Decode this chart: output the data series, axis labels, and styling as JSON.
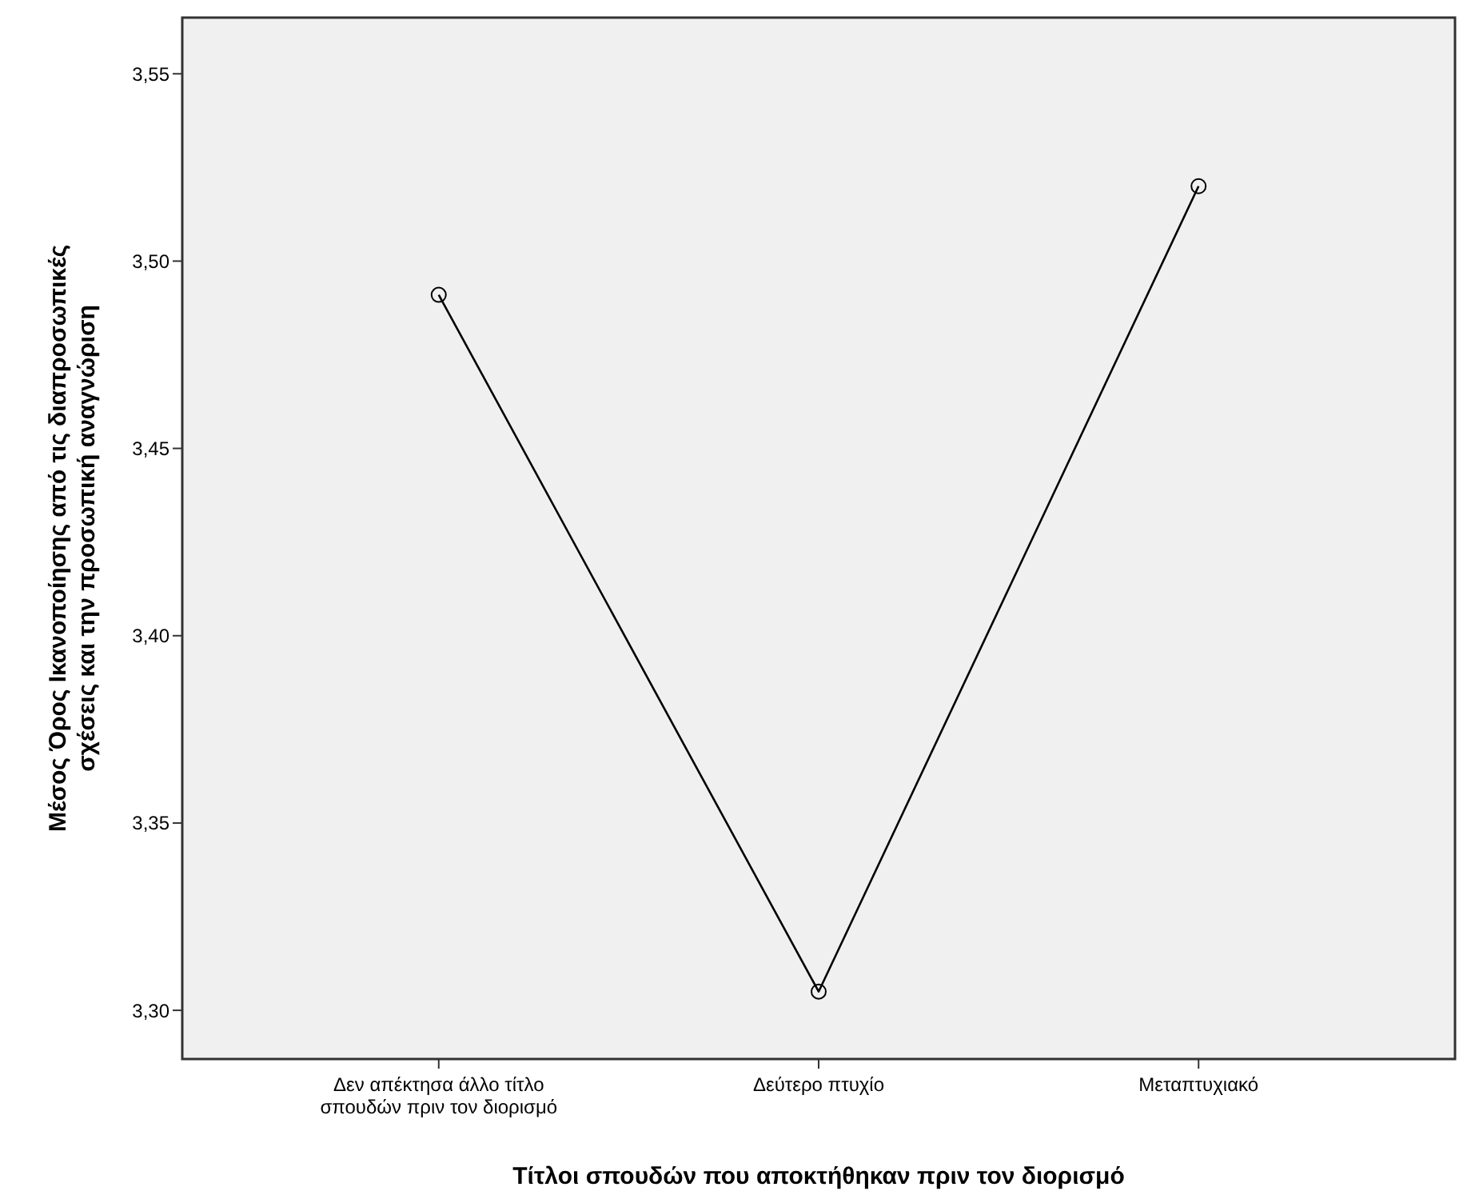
{
  "chart_data": {
    "type": "line",
    "xlabel": "Τίτλοι σπουδών που αποκτήθηκαν πριν τον διορισμό",
    "ylabel": "Μέσος Όρος Ικανοποίησης από τις διαπροσωπικές σχέσεις και την προσωπική αναγνώριση",
    "categories": [
      "Δεν απέκτησα άλλο τίτλο σπουδών πριν τον διορισμό",
      "Δεύτερο πτυχίο",
      "Μεταπτυχιακό"
    ],
    "series": [
      {
        "color": "#000000",
        "values": [
          3.491,
          3.305,
          3.52
        ]
      }
    ],
    "ylim": [
      3.287,
      3.565
    ],
    "yticks": [
      {
        "value": 3.3,
        "label": "3,30"
      },
      {
        "value": 3.35,
        "label": "3,35"
      },
      {
        "value": 3.4,
        "label": "3,40"
      },
      {
        "value": 3.45,
        "label": "3,45"
      },
      {
        "value": 3.5,
        "label": "3,50"
      },
      {
        "value": 3.55,
        "label": "3,55"
      }
    ],
    "grid": false,
    "marker": "circle",
    "line_style": "solid"
  }
}
